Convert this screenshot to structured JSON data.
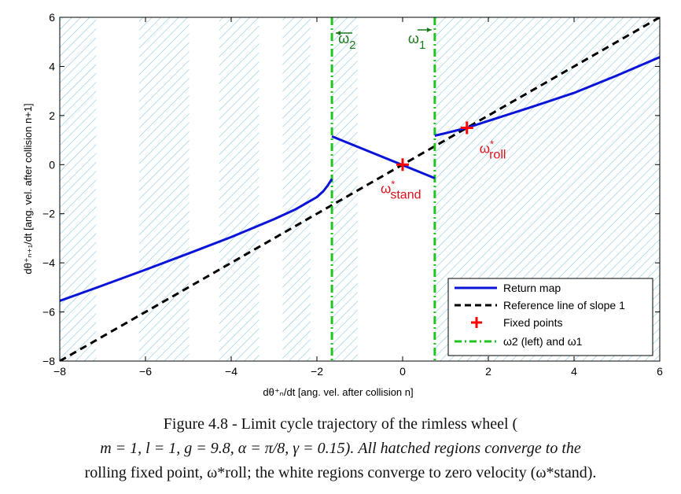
{
  "chart_data": {
    "type": "line",
    "xlabel": "dθ⁺ₙ/dt   [ang. vel. after collision n]",
    "ylabel": "dθ⁺ₙ₊₁/dt   [ang. vel. after collision n+1]",
    "xlim": [
      -8,
      6
    ],
    "ylim": [
      -8,
      6
    ],
    "xticks": [
      -8,
      -6,
      -4,
      -2,
      0,
      2,
      4,
      6
    ],
    "yticks": [
      -8,
      -6,
      -4,
      -2,
      0,
      2,
      4,
      6
    ],
    "xtick_labels": [
      "−8",
      "−6",
      "−4",
      "−2",
      "0",
      "2",
      "4",
      "6"
    ],
    "ytick_labels": [
      "−8",
      "−6",
      "−4",
      "−2",
      "0",
      "2",
      "4",
      "6"
    ],
    "grid": false,
    "legend_position": "bottom-right",
    "hatched_regions": [
      [
        -8,
        -7.15
      ],
      [
        -6.15,
        -4.98
      ],
      [
        -4.28,
        -3.35
      ],
      [
        -2.8,
        -2.15
      ],
      [
        -1.65,
        -1.05
      ],
      [
        0.75,
        6
      ]
    ],
    "series": [
      {
        "name": "Return map",
        "segments": [
          [
            [
              -8,
              -5.55
            ],
            [
              -7,
              -4.92
            ],
            [
              -6,
              -4.28
            ],
            [
              -5,
              -3.62
            ],
            [
              -4,
              -2.95
            ],
            [
              -3,
              -2.22
            ],
            [
              -2.5,
              -1.82
            ],
            [
              -2,
              -1.32
            ],
            [
              -1.85,
              -1.08
            ],
            [
              -1.75,
              -0.86
            ],
            [
              -1.65,
              -0.58
            ]
          ],
          [
            [
              -1.65,
              1.15
            ],
            [
              0.75,
              -0.55
            ]
          ],
          [
            [
              0.75,
              1.18
            ],
            [
              1.0,
              1.28
            ],
            [
              1.5,
              1.5
            ],
            [
              2,
              1.78
            ],
            [
              3,
              2.34
            ],
            [
              4,
              2.92
            ],
            [
              5,
              3.63
            ],
            [
              6,
              4.38
            ]
          ]
        ]
      },
      {
        "name": "Reference line of slope 1",
        "points": [
          [
            -8,
            -8
          ],
          [
            6,
            6
          ]
        ]
      },
      {
        "name": "Fixed points",
        "points": [
          [
            0,
            0
          ],
          [
            1.5,
            1.5
          ]
        ]
      },
      {
        "name": "ω2 (left) and ω1",
        "x": [
          -1.65,
          0.75
        ]
      }
    ],
    "annotations": {
      "omega2": "ω2",
      "omega1": "ω1",
      "stand": "ω*stand",
      "roll": "ω*roll"
    },
    "legend": [
      "Return map",
      "Reference line of slope 1",
      "Fixed points",
      "ω2 (left) and ω1"
    ],
    "colors": {
      "return_map": "#0a14d8",
      "reference": "#000000",
      "fixed": "#ff0000",
      "omega": "#1fc41f",
      "hatch": "#7fc4e0",
      "annotation_green": "#1a7a1a"
    }
  },
  "caption": {
    "line1": "Figure 4.8 - Limit cycle trajectory of the rimless wheel (",
    "line2": "m = 1, l = 1, g = 9.8, α = π/8, γ = 0.15). All hatched regions converge to the",
    "line3": "rolling fixed point, ω*roll; the white regions converge to zero velocity (ω*stand)."
  }
}
